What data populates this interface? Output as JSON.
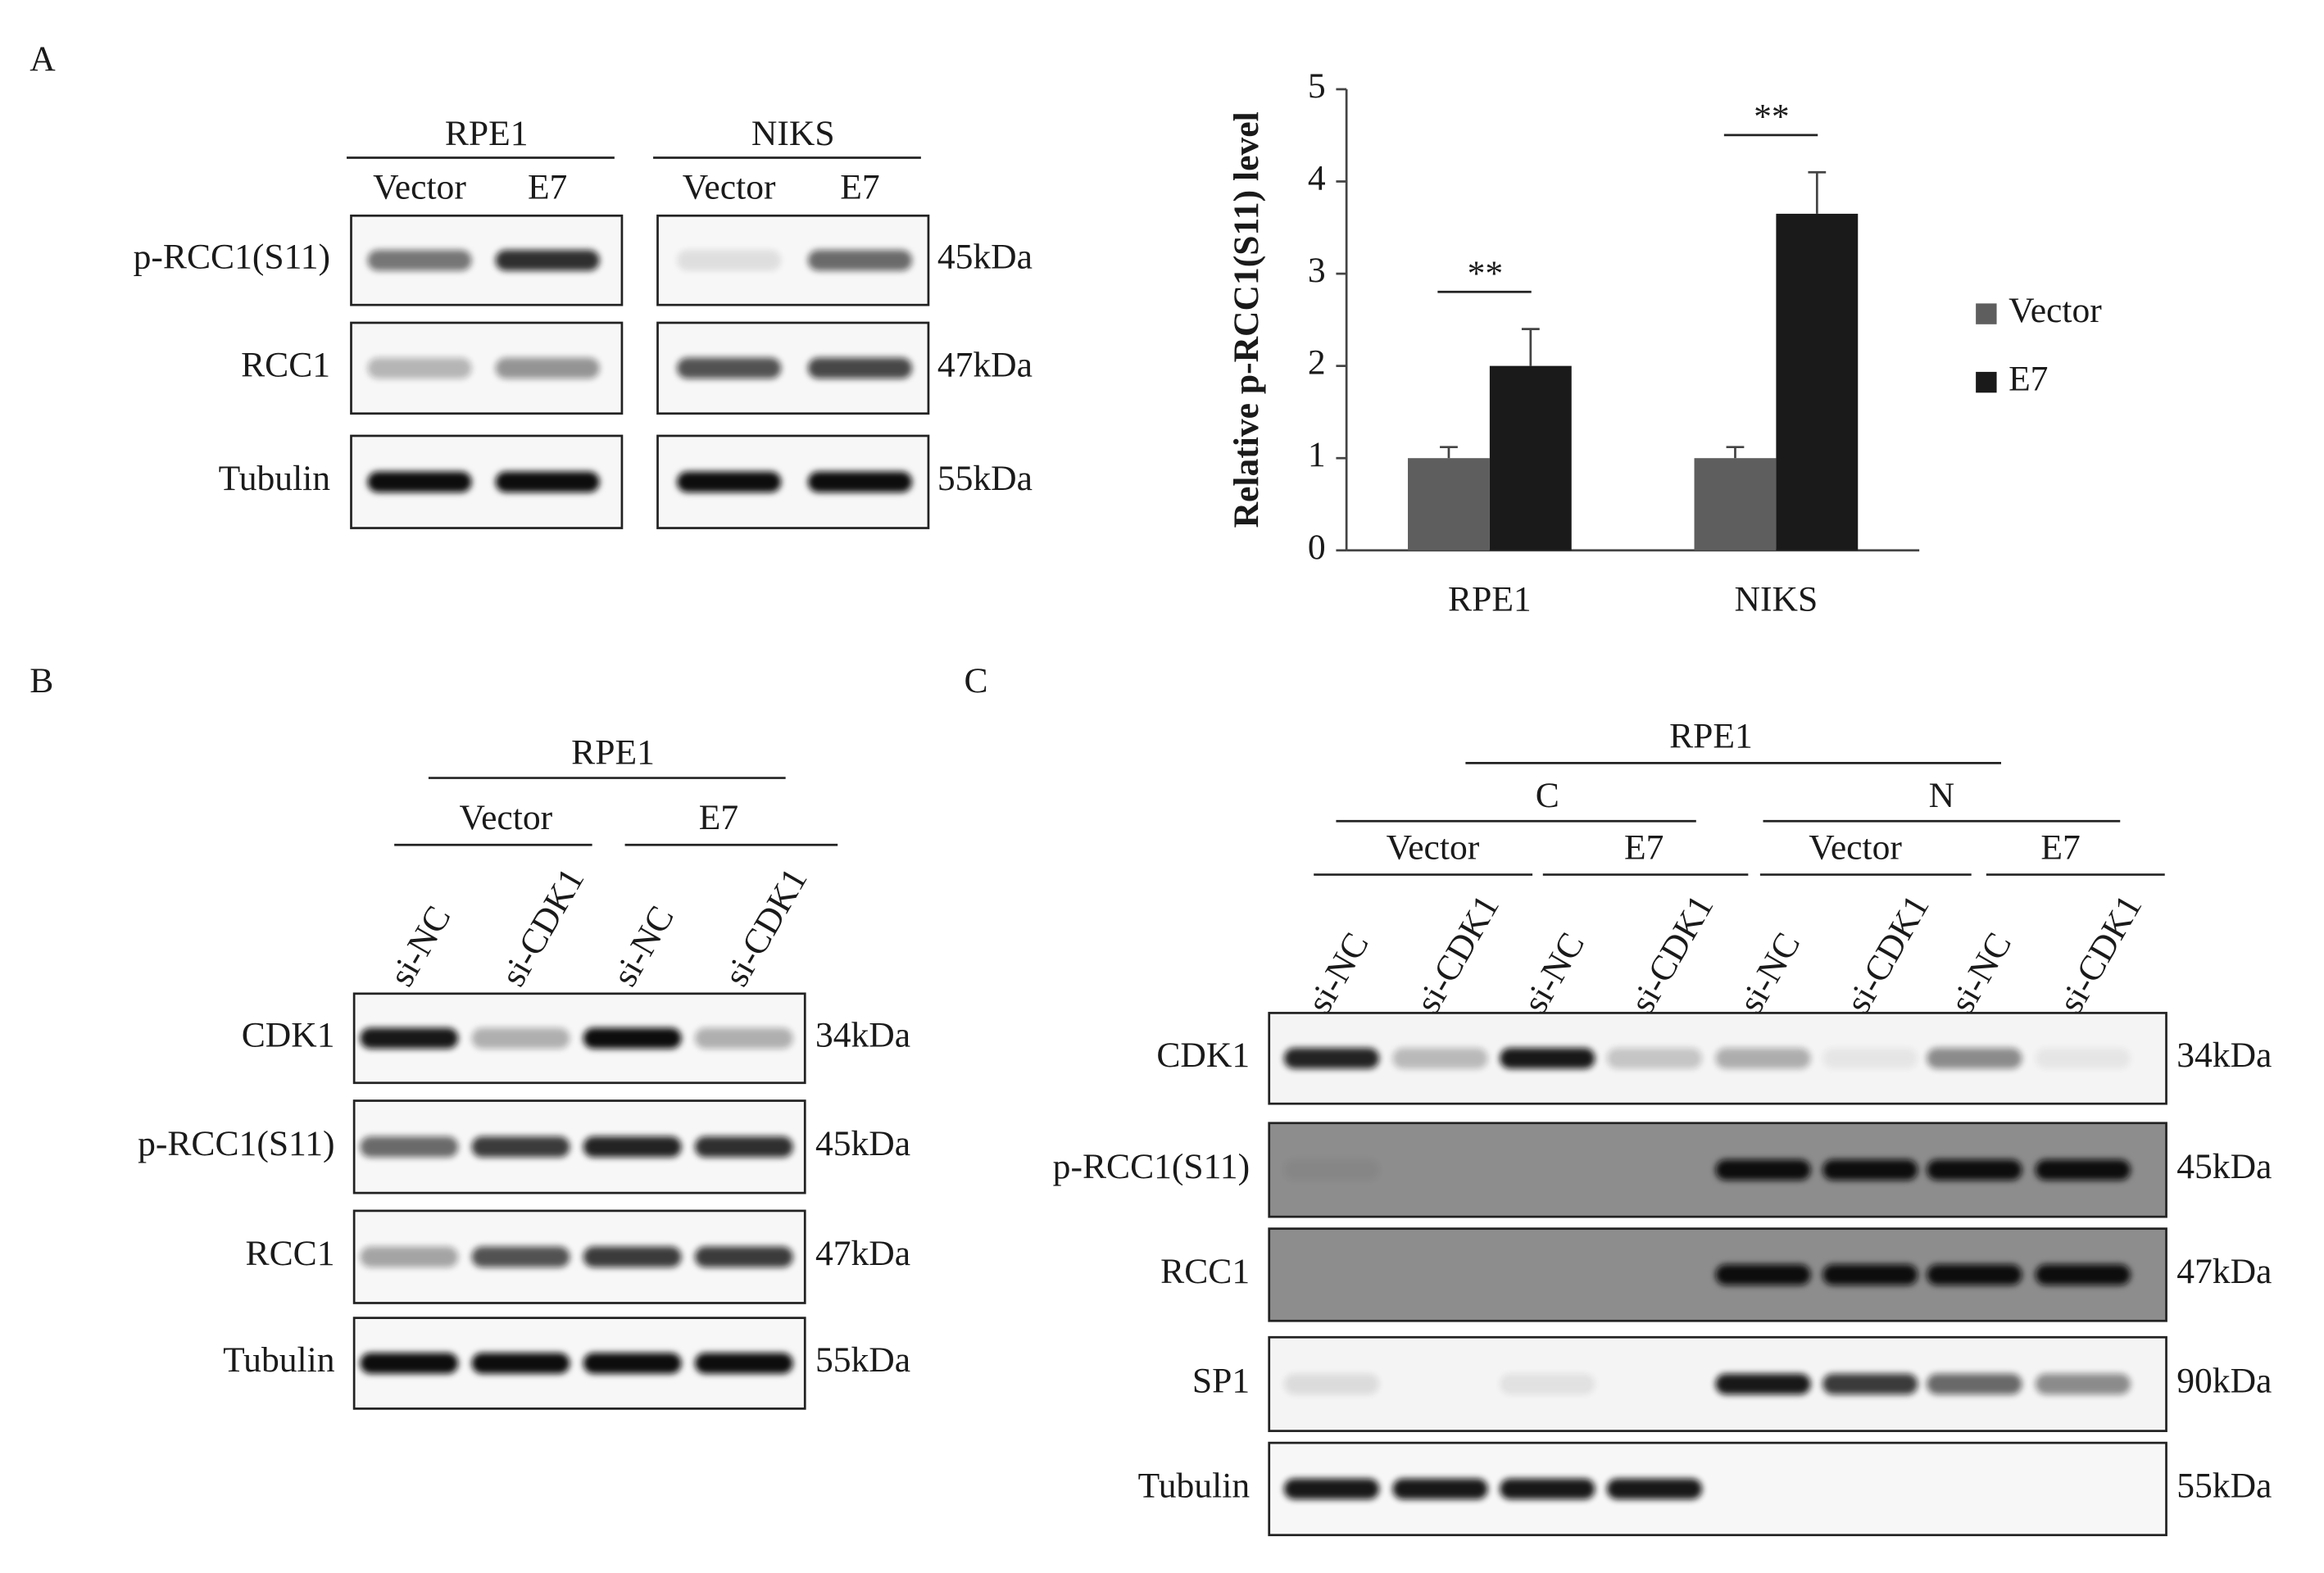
{
  "panel_a": {
    "label": "A",
    "blots": [
      {
        "cell_line": "RPE1",
        "lanes": [
          "Vector",
          "E7"
        ]
      },
      {
        "cell_line": "NIKS",
        "lanes": [
          "Vector",
          "E7"
        ]
      }
    ],
    "rows": [
      "p-RCC1(S11)",
      "RCC1",
      "Tubulin"
    ],
    "sizes": [
      "45kDa",
      "47kDa",
      "55kDa"
    ],
    "chart": {
      "type": "bar",
      "ylabel": "Relative p-RCC1(S11) level",
      "categories": [
        "RPE1",
        "NIKS"
      ],
      "series": [
        {
          "name": "Vector",
          "color": "#5e5e5e",
          "values": [
            1,
            1
          ],
          "errors": [
            0.12,
            0.12
          ]
        },
        {
          "name": "E7",
          "color": "#1a1a1a",
          "values": [
            2,
            3.65
          ],
          "errors": [
            0.4,
            0.45
          ]
        }
      ],
      "significance": [
        "**",
        "**"
      ],
      "ylim": [
        0,
        5
      ],
      "yticks": [
        0,
        1,
        2,
        3,
        4,
        5
      ]
    }
  },
  "panel_b": {
    "label": "B",
    "cell_line": "RPE1",
    "groups": [
      "Vector",
      "E7"
    ],
    "lanes": [
      "si-NC",
      "si-CDK1",
      "si-NC",
      "si-CDK1"
    ],
    "rows": [
      "CDK1",
      "p-RCC1(S11)",
      "RCC1",
      "Tubulin"
    ],
    "sizes": [
      "34kDa",
      "45kDa",
      "47kDa",
      "55kDa"
    ]
  },
  "panel_c": {
    "label": "C",
    "cell_line": "RPE1",
    "fractions": [
      "C",
      "N"
    ],
    "groups": [
      "Vector",
      "E7",
      "Vector",
      "E7"
    ],
    "lanes": [
      "si-NC",
      "si-CDK1",
      "si-NC",
      "si-CDK1",
      "si-NC",
      "si-CDK1",
      "si-NC",
      "si-CDK1"
    ],
    "rows": [
      "CDK1",
      "p-RCC1(S11)",
      "RCC1",
      "SP1",
      "Tubulin"
    ],
    "sizes": [
      "34kDa",
      "45kDa",
      "47kDa",
      "90kDa",
      "55kDa"
    ]
  }
}
